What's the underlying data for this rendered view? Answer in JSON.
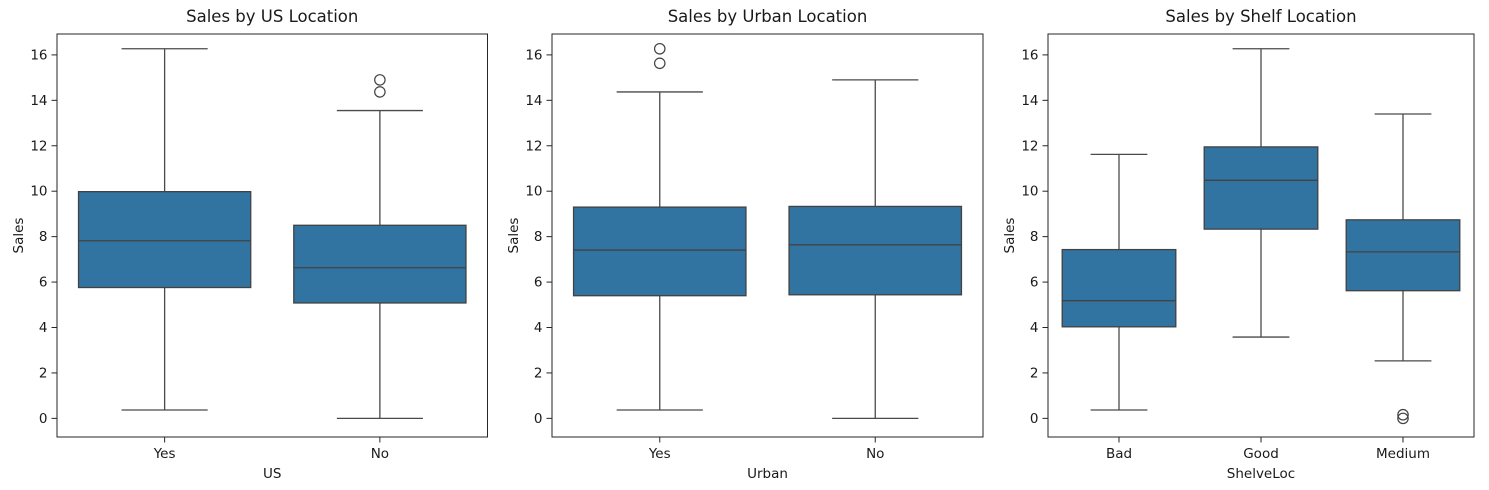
{
  "figure": {
    "background": "#ffffff",
    "box_fill": "#3274a1",
    "box_line_color": "#424242",
    "whisker_color": "#4a4a4a",
    "spine_color": "#262626",
    "text_color": "#1a1a1a"
  },
  "chart_data": [
    {
      "type": "box",
      "title": "Sales by US Location",
      "xlabel": "US",
      "ylabel": "Sales",
      "categories": [
        "Yes",
        "No"
      ],
      "yticks": [
        0,
        2,
        4,
        6,
        8,
        10,
        12,
        14,
        16
      ],
      "ylim": [
        -0.82,
        16.92
      ],
      "grid": false,
      "legend": "none",
      "boxes": [
        {
          "category": "Yes",
          "whisker_low": 0.37,
          "q1": 5.76,
          "median": 7.82,
          "q3": 9.98,
          "whisker_high": 16.27,
          "outliers": []
        },
        {
          "category": "No",
          "whisker_low": 0.0,
          "q1": 5.08,
          "median": 6.63,
          "q3": 8.5,
          "whisker_high": 13.55,
          "outliers": [
            14.37,
            14.9
          ]
        }
      ]
    },
    {
      "type": "box",
      "title": "Sales by Urban Location",
      "xlabel": "Urban",
      "ylabel": "Sales",
      "categories": [
        "Yes",
        "No"
      ],
      "yticks": [
        0,
        2,
        4,
        6,
        8,
        10,
        12,
        14,
        16
      ],
      "ylim": [
        -0.82,
        16.92
      ],
      "grid": false,
      "legend": "none",
      "boxes": [
        {
          "category": "Yes",
          "whisker_low": 0.37,
          "q1": 5.4,
          "median": 7.41,
          "q3": 9.3,
          "whisker_high": 14.37,
          "outliers": [
            15.63,
            16.27
          ]
        },
        {
          "category": "No",
          "whisker_low": 0.0,
          "q1": 5.44,
          "median": 7.64,
          "q3": 9.33,
          "whisker_high": 14.9,
          "outliers": []
        }
      ]
    },
    {
      "type": "box",
      "title": "Sales by Shelf Location",
      "xlabel": "ShelveLoc",
      "ylabel": "Sales",
      "categories": [
        "Bad",
        "Good",
        "Medium"
      ],
      "yticks": [
        0,
        2,
        4,
        6,
        8,
        10,
        12,
        14,
        16
      ],
      "ylim": [
        -0.82,
        16.92
      ],
      "grid": false,
      "legend": "none",
      "boxes": [
        {
          "category": "Bad",
          "whisker_low": 0.37,
          "q1": 4.03,
          "median": 5.18,
          "q3": 7.43,
          "whisker_high": 11.62,
          "outliers": []
        },
        {
          "category": "Good",
          "whisker_low": 3.58,
          "q1": 8.33,
          "median": 10.48,
          "q3": 11.95,
          "whisker_high": 16.27,
          "outliers": []
        },
        {
          "category": "Medium",
          "whisker_low": 2.53,
          "q1": 5.62,
          "median": 7.33,
          "q3": 8.74,
          "whisker_high": 13.4,
          "outliers": [
            0.16,
            0.0
          ]
        }
      ]
    }
  ]
}
